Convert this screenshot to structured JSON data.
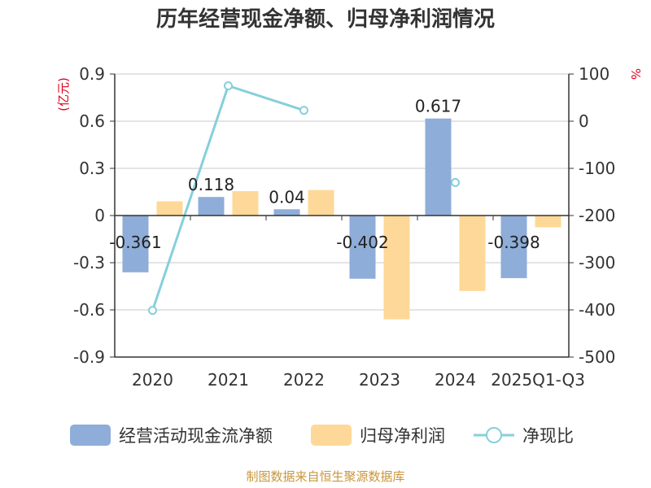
{
  "chart_data": {
    "type": "bar",
    "title": "历年经营现金净额、归母净利润情况",
    "left_unit": "(亿元)",
    "right_unit": "%",
    "categories": [
      "2020",
      "2021",
      "2022",
      "2023",
      "2024",
      "2025Q1-Q3"
    ],
    "left_axis": {
      "min": -0.9,
      "max": 0.9,
      "ticks": [
        "-0.9",
        "-0.6",
        "-0.3",
        "0",
        "0.3",
        "0.6",
        "0.9"
      ]
    },
    "right_axis": {
      "min": -500,
      "max": 100,
      "ticks": [
        "-500",
        "-400",
        "-300",
        "-200",
        "-100",
        "0",
        "100"
      ]
    },
    "series": [
      {
        "name": "经营活动现金流净额",
        "type": "bar",
        "axis": "left",
        "color": "#8eadd9",
        "values": [
          -0.361,
          0.118,
          0.04,
          -0.402,
          0.617,
          -0.398
        ],
        "labels": [
          "-0.361",
          "0.118",
          "0.04",
          "-0.402",
          "0.617",
          "-0.398"
        ]
      },
      {
        "name": "归母净利润",
        "type": "bar",
        "axis": "left",
        "color": "#fed898",
        "values": [
          0.09,
          0.155,
          0.162,
          -0.66,
          -0.48,
          -0.075
        ]
      },
      {
        "name": "净现比",
        "type": "line",
        "axis": "right",
        "color": "#86cfdb",
        "values": [
          -401,
          75,
          23,
          null,
          -130,
          null
        ]
      }
    ],
    "grid": true,
    "legend_position": "bottom"
  },
  "source": "制图数据来自恒生聚源数据库"
}
